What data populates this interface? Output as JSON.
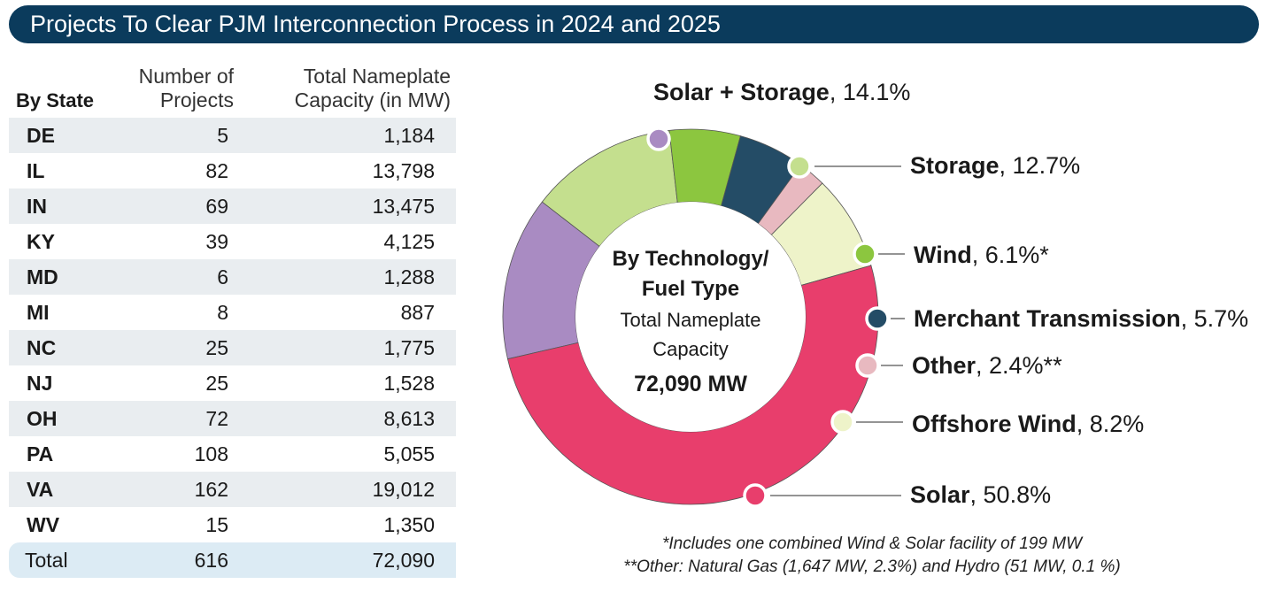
{
  "title": "Projects To Clear PJM Interconnection Process in 2024 and 2025",
  "table": {
    "headers": {
      "state": "By State",
      "projects_line1": "Number of",
      "projects_line2": "Projects",
      "capacity_line1": "Total Nameplate",
      "capacity_line2": "Capacity (in MW)"
    },
    "rows": [
      {
        "state": "DE",
        "projects": "5",
        "capacity": "1,184"
      },
      {
        "state": "IL",
        "projects": "82",
        "capacity": "13,798"
      },
      {
        "state": "IN",
        "projects": "69",
        "capacity": "13,475"
      },
      {
        "state": "KY",
        "projects": "39",
        "capacity": "4,125"
      },
      {
        "state": "MD",
        "projects": "6",
        "capacity": "1,288"
      },
      {
        "state": "MI",
        "projects": "8",
        "capacity": "887"
      },
      {
        "state": "NC",
        "projects": "25",
        "capacity": "1,775"
      },
      {
        "state": "NJ",
        "projects": "25",
        "capacity": "1,528"
      },
      {
        "state": "OH",
        "projects": "72",
        "capacity": "8,613"
      },
      {
        "state": "PA",
        "projects": "108",
        "capacity": "5,055"
      },
      {
        "state": "VA",
        "projects": "162",
        "capacity": "19,012"
      },
      {
        "state": "WV",
        "projects": "15",
        "capacity": "1,350"
      }
    ],
    "total": {
      "state": "Total",
      "projects": "616",
      "capacity": "72,090"
    }
  },
  "chart_data": {
    "type": "pie",
    "variant": "donut",
    "center_text": {
      "line1": "By Technology/",
      "line2": "Fuel Type",
      "line3": "Total Nameplate",
      "line4": "Capacity",
      "line5": "72,090 MW"
    },
    "slices": [
      {
        "name": "Solar + Storage",
        "value": 14.1,
        "pct_label": ", 14.1%",
        "color": "#a98bc2"
      },
      {
        "name": "Storage",
        "value": 12.7,
        "pct_label": ", 12.7%",
        "color": "#c4df8e"
      },
      {
        "name": "Wind",
        "value": 6.1,
        "pct_label": ", 6.1%*",
        "color": "#8cc63f"
      },
      {
        "name": "Merchant Transmission",
        "value": 5.7,
        "pct_label": ", 5.7%",
        "color": "#244c66"
      },
      {
        "name": "Other",
        "value": 2.4,
        "pct_label": ", 2.4%**",
        "color": "#e8b9c0"
      },
      {
        "name": "Offshore Wind",
        "value": 8.2,
        "pct_label": ", 8.2%",
        "color": "#eef3c9"
      },
      {
        "name": "Solar",
        "value": 50.8,
        "pct_label": ", 50.8%",
        "color": "#e83e6c"
      }
    ]
  },
  "footnotes": {
    "line1": "*Includes one combined Wind & Solar facility of 199 MW",
    "line2": "**Other: Natural Gas (1,647 MW, 2.3%) and Hydro (51 MW, 0.1 %)"
  }
}
